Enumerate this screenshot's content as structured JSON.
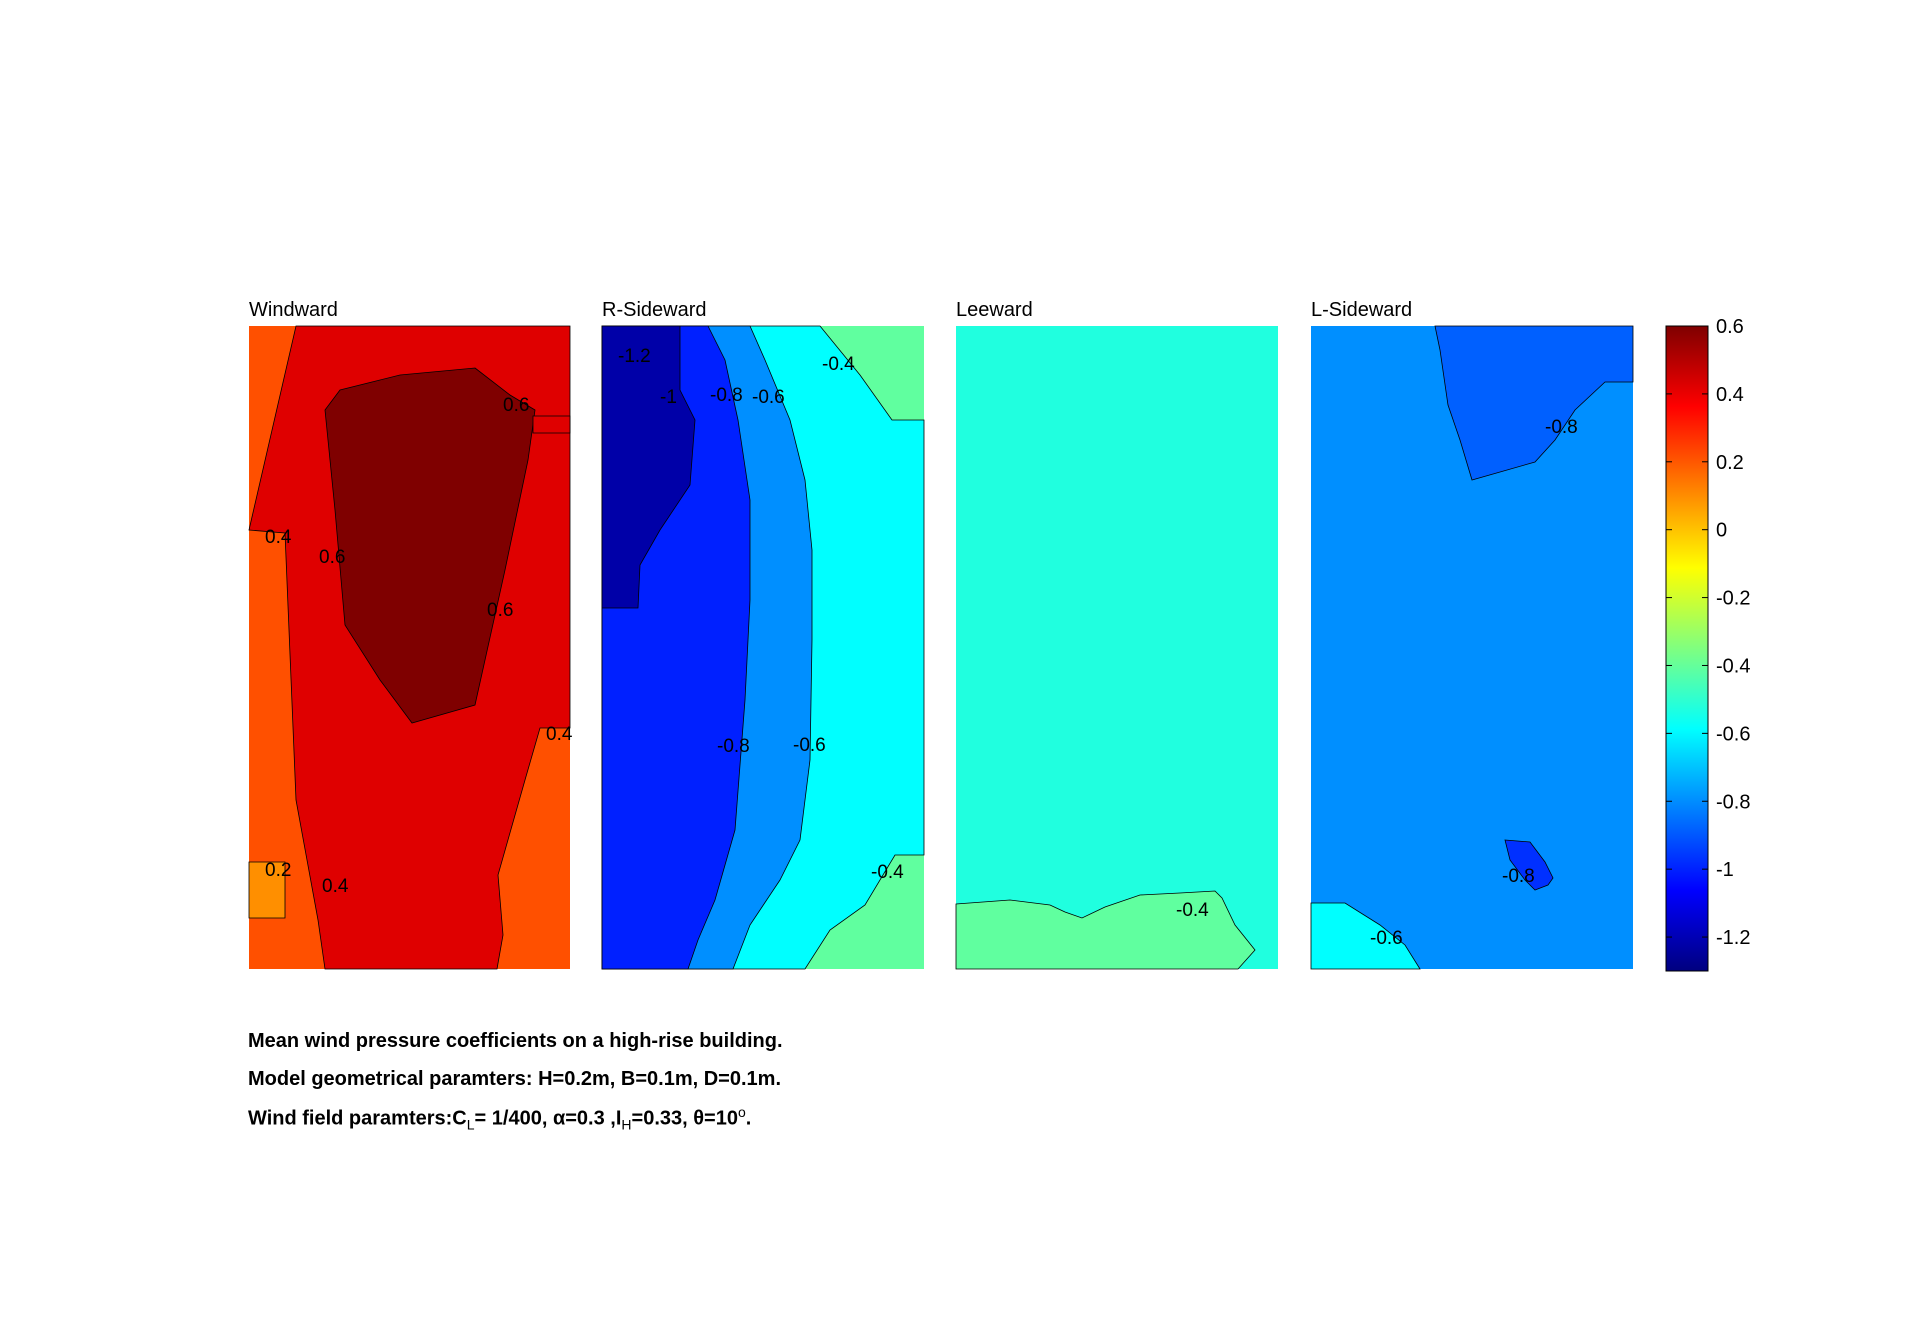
{
  "chart_data": {
    "type": "heatmap",
    "colormap": "jet",
    "colorbar": {
      "limits": [
        -1.3,
        0.6
      ],
      "ticks": [
        0.6,
        0.4,
        0.2,
        0,
        -0.2,
        -0.4,
        -0.6,
        -0.8,
        -1,
        -1.2
      ],
      "tick_labels": [
        "0.6",
        "0.4",
        "0.2",
        "0",
        "-0.2",
        "-0.4",
        "-0.6",
        "-0.8",
        "-1",
        "-1.2"
      ],
      "placement": "right"
    },
    "panels": [
      {
        "title": "Windward",
        "regions": [
          {
            "level": 0.3,
            "color": "#ff5000"
          },
          {
            "level": 0.5,
            "color": "#df0000"
          },
          {
            "level": 0.6,
            "color": "#7f0000"
          },
          {
            "level": 0.1,
            "color": "#ff8f00"
          }
        ],
        "contour_labels": [
          "0.6",
          "0.4",
          "0.6",
          "0.6",
          "0.4",
          "0.2",
          "0.4"
        ]
      },
      {
        "title": "R-Sideward",
        "regions": [
          {
            "level": -0.5,
            "color": "#60ff9f"
          },
          {
            "level": -0.7,
            "color": "#00ffff"
          },
          {
            "level": -0.9,
            "color": "#008fff"
          },
          {
            "level": -1.1,
            "color": "#0020ff"
          },
          {
            "level": -1.25,
            "color": "#0000a8"
          }
        ],
        "contour_labels": [
          "-1.2",
          "-1",
          "-0.8",
          "-0.6",
          "-0.4",
          "-0.8",
          "-0.6",
          "-0.4"
        ]
      },
      {
        "title": "Leeward",
        "regions": [
          {
            "level": -0.5,
            "color": "#20ffdf"
          },
          {
            "level": -0.4,
            "color": "#60ff9f"
          }
        ],
        "contour_labels": [
          "-0.4"
        ]
      },
      {
        "title": "L-Sideward",
        "regions": [
          {
            "level": -0.7,
            "color": "#008fff"
          },
          {
            "level": -0.9,
            "color": "#0060ff"
          },
          {
            "level": -1.0,
            "color": "#0030ff"
          },
          {
            "level": -0.6,
            "color": "#00ffff"
          }
        ],
        "contour_labels": [
          "-0.8",
          "-0.8",
          "-0.6"
        ]
      }
    ]
  },
  "caption": {
    "line1": "Mean wind pressure coefficients on a high-rise building.",
    "line2": "Model geometrical paramters: H=0.2m, B=0.1m, D=0.1m.",
    "line3": {
      "prefix": "Wind field paramters:C",
      "cl_sub": "L",
      "cl_value": "= 1/400, α=0.3 ,I",
      "ih_sub": "H",
      "ih_value": "=0.33, θ=10",
      "theta_sup": "o",
      "suffix": "."
    }
  }
}
